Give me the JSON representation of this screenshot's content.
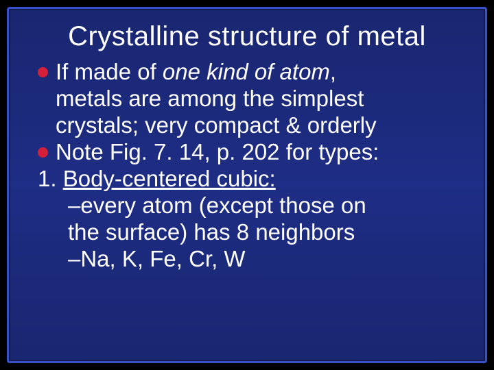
{
  "slide": {
    "background_gradient": [
      "#1a2670",
      "#1e2d85",
      "#1a2670"
    ],
    "border_color": "#3850c8",
    "title_color": "#ffffff",
    "body_color": "#ffffff",
    "bullet_color": "#d4203a",
    "title_fontsize": 40,
    "body_fontsize": 33,
    "title": "Crystalline structure of metal",
    "lines": {
      "l1_pre": "If made of ",
      "l1_em": "one kind of atom",
      "l1_post": ",",
      "l2": "metals are among the simplest",
      "l3": "crystals; very compact & orderly",
      "l4": "Note Fig. 7. 14, p. 202 for types:",
      "l5_pre": "1. ",
      "l5_u": "Body-centered cubic:",
      "l6": "–every atom (except those on",
      "l7": "the surface) has 8 neighbors",
      "l8": "–Na, K, Fe, Cr, W"
    }
  }
}
